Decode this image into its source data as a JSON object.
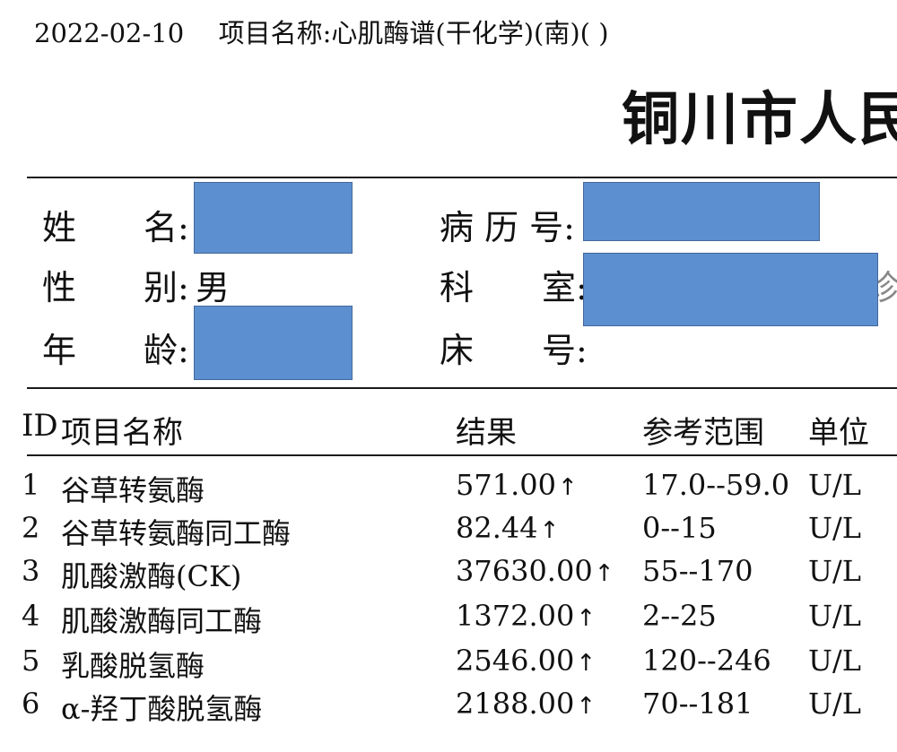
{
  "header": {
    "date": "2022-02-10",
    "item_label": "项目名称:",
    "item_value": "心肌酶谱(干化学)(南)( )",
    "hospital": "铜川市人民"
  },
  "patient": {
    "name_label_1": "姓",
    "name_label_2": "名:",
    "gender_label_1": "性",
    "gender_label_2": "别:",
    "gender_value": "男",
    "age_label_1": "年",
    "age_label_2": "龄:",
    "record_label": "病 历 号:",
    "dept_label_1": "科",
    "dept_label_2": "室:",
    "dept_tail": "诊",
    "bed_label_1": "床",
    "bed_label_2": "号:"
  },
  "table": {
    "headers": {
      "id": "ID",
      "name": "项目名称",
      "result": "结果",
      "range": "参考范围",
      "unit": "单位"
    },
    "flag_colors": {
      "redaction": "#5b8fd0"
    },
    "rows": [
      {
        "id": "1",
        "name": "谷草转氨酶",
        "result": "571.00",
        "flag": "↑",
        "range": "17.0--59.0",
        "unit": "U/L"
      },
      {
        "id": "2",
        "name": "谷草转氨酶同工酶",
        "result": "82.44",
        "flag": "↑",
        "range": "0--15",
        "unit": "U/L"
      },
      {
        "id": "3",
        "name": "肌酸激酶(CK)",
        "result": "37630.00",
        "flag": "↑",
        "range": "55--170",
        "unit": "U/L"
      },
      {
        "id": "4",
        "name": "肌酸激酶同工酶",
        "result": "1372.00",
        "flag": "↑",
        "range": "2--25",
        "unit": "U/L"
      },
      {
        "id": "5",
        "name": "乳酸脱氢酶",
        "result": "2546.00",
        "flag": "↑",
        "range": "120--246",
        "unit": "U/L"
      },
      {
        "id": "6",
        "name": "α-羟丁酸脱氢酶",
        "result": "2188.00",
        "flag": "↑",
        "range": "70--181",
        "unit": "U/L"
      }
    ]
  }
}
